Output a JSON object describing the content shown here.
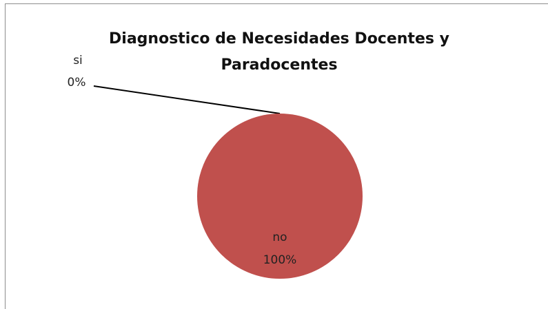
{
  "chart_data": {
    "type": "pie",
    "title": "Diagnostico de Necesidades Docentes y Paradocentes",
    "categories": [
      "si",
      "no"
    ],
    "values": [
      0,
      100
    ],
    "value_labels": [
      "0%",
      "100%"
    ],
    "colors": [
      "#4f81bd",
      "#c0504d"
    ]
  }
}
